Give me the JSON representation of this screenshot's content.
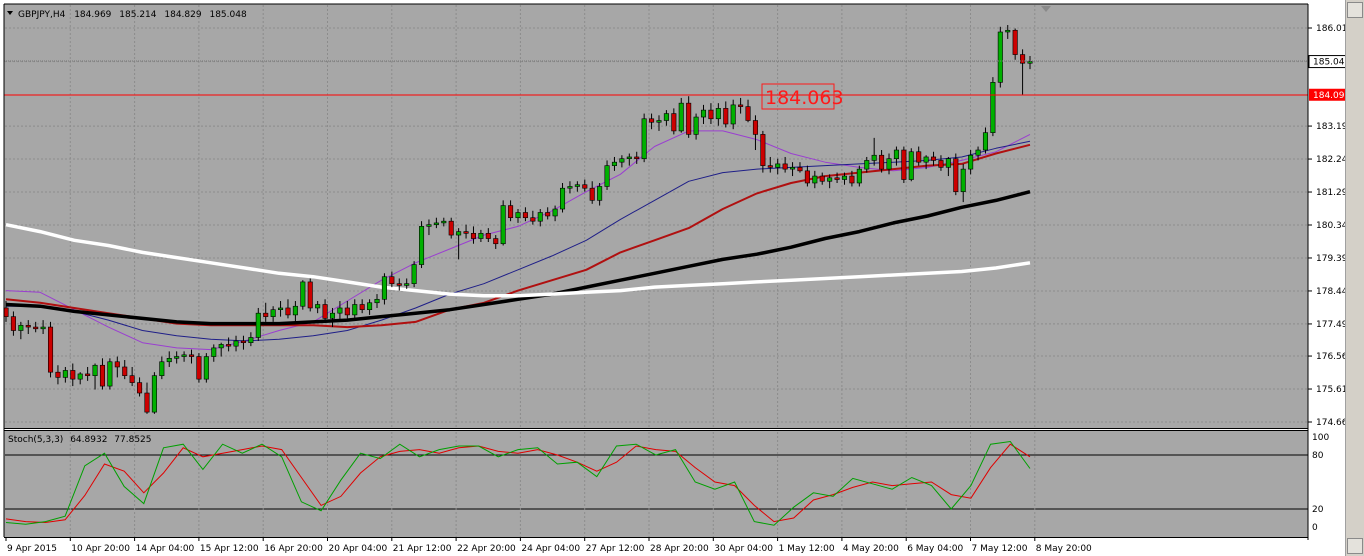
{
  "symbol_header": {
    "symbol": "GBPJPY,H4",
    "open": "184.969",
    "high": "185.214",
    "low": "184.829",
    "close": "185.048"
  },
  "stochastic_header": {
    "name": "Stoch(5,3,3)",
    "main": "64.8932",
    "signal": "77.8525"
  },
  "price_axis": {
    "ticks": [
      "186.015",
      "185.048",
      "183.190",
      "182.240",
      "181.290",
      "180.340",
      "179.390",
      "178.440",
      "177.490",
      "176.565",
      "175.615",
      "174.665"
    ],
    "current_price_tag": "185.048",
    "level_tag": "184.092"
  },
  "stochastic_axis": {
    "ticks": [
      "100",
      "80",
      "20",
      "0"
    ]
  },
  "time_axis": {
    "labels": [
      "9 Apr 2015",
      "10 Apr 20:00",
      "14 Apr 04:00",
      "15 Apr 12:00",
      "16 Apr 20:00",
      "20 Apr 04:00",
      "21 Apr 12:00",
      "22 Apr 20:00",
      "24 Apr 04:00",
      "27 Apr 12:00",
      "28 Apr 20:00",
      "30 Apr 04:00",
      "1 May 12:00",
      "4 May 20:00",
      "6 May 04:00",
      "7 May 12:00",
      "8 May 20:00"
    ]
  },
  "level_annotation": "184.063",
  "colors": {
    "chart_background": "#a7a7a7",
    "bull_candle": "#00b000",
    "bear_candle": "#cc0000",
    "level_line": "#ff0000",
    "ma_fast": "#9a3fd0",
    "ma_mid": "#1f1f88",
    "ma_slow_red": "#b01010",
    "ma_black": "#000000",
    "ma_white": "#ffffff",
    "stoch_main": "#00a000",
    "stoch_signal": "#e00000"
  },
  "chart_data": {
    "type": "candlestick",
    "title": "GBPJPY,H4",
    "ylim": [
      174.5,
      186.3
    ],
    "candles": [
      [
        177.95,
        178.15,
        177.55,
        177.7
      ],
      [
        177.7,
        177.85,
        177.15,
        177.3
      ],
      [
        177.3,
        177.55,
        177.05,
        177.45
      ],
      [
        177.45,
        177.6,
        177.2,
        177.4
      ],
      [
        177.4,
        177.55,
        177.25,
        177.35
      ],
      [
        177.35,
        177.6,
        177.2,
        177.4
      ],
      [
        177.4,
        177.55,
        175.95,
        176.1
      ],
      [
        176.1,
        176.3,
        175.75,
        175.95
      ],
      [
        175.95,
        176.25,
        175.8,
        176.15
      ],
      [
        176.15,
        176.35,
        175.7,
        175.9
      ],
      [
        175.9,
        176.1,
        175.75,
        176.05
      ],
      [
        176.05,
        176.25,
        175.85,
        176.0
      ],
      [
        176.0,
        176.35,
        175.6,
        176.3
      ],
      [
        176.3,
        176.5,
        175.6,
        175.7
      ],
      [
        175.7,
        176.5,
        175.6,
        176.4
      ],
      [
        176.4,
        176.55,
        175.95,
        176.25
      ],
      [
        176.25,
        176.45,
        175.9,
        176.0
      ],
      [
        176.0,
        176.25,
        175.7,
        175.8
      ],
      [
        175.8,
        175.95,
        175.4,
        175.5
      ],
      [
        175.5,
        175.8,
        174.9,
        174.95
      ],
      [
        174.95,
        176.1,
        174.9,
        176.0
      ],
      [
        176.0,
        176.55,
        175.9,
        176.4
      ],
      [
        176.4,
        176.7,
        176.25,
        176.5
      ],
      [
        176.5,
        176.7,
        176.35,
        176.55
      ],
      [
        176.55,
        176.7,
        176.4,
        176.6
      ],
      [
        176.6,
        176.75,
        176.35,
        176.55
      ],
      [
        176.55,
        176.65,
        175.8,
        175.9
      ],
      [
        175.9,
        176.65,
        175.8,
        176.55
      ],
      [
        176.55,
        176.9,
        176.4,
        176.8
      ],
      [
        176.8,
        176.95,
        176.55,
        176.9
      ],
      [
        176.9,
        177.1,
        176.7,
        176.85
      ],
      [
        176.85,
        177.15,
        176.7,
        177.0
      ],
      [
        177.0,
        177.15,
        176.75,
        176.95
      ],
      [
        176.95,
        177.25,
        176.85,
        177.1
      ],
      [
        177.1,
        177.95,
        177.0,
        177.8
      ],
      [
        177.8,
        178.1,
        177.55,
        177.7
      ],
      [
        177.7,
        178.0,
        177.55,
        177.9
      ],
      [
        177.9,
        178.15,
        177.7,
        177.95
      ],
      [
        177.95,
        178.2,
        177.65,
        177.75
      ],
      [
        177.75,
        178.15,
        177.55,
        178.0
      ],
      [
        178.0,
        178.75,
        177.9,
        178.7
      ],
      [
        178.7,
        178.8,
        177.85,
        177.95
      ],
      [
        177.95,
        178.15,
        177.8,
        178.05
      ],
      [
        178.05,
        178.2,
        177.55,
        177.65
      ],
      [
        177.65,
        177.95,
        177.4,
        177.8
      ],
      [
        177.8,
        178.15,
        177.6,
        177.95
      ],
      [
        177.95,
        178.15,
        177.65,
        177.75
      ],
      [
        177.75,
        178.2,
        177.65,
        178.05
      ],
      [
        178.05,
        178.2,
        177.8,
        177.9
      ],
      [
        177.9,
        178.2,
        177.75,
        178.1
      ],
      [
        178.1,
        178.35,
        177.95,
        178.2
      ],
      [
        178.2,
        178.95,
        178.05,
        178.85
      ],
      [
        178.85,
        179.0,
        178.55,
        178.65
      ],
      [
        178.65,
        178.8,
        178.45,
        178.6
      ],
      [
        178.6,
        178.8,
        178.5,
        178.65
      ],
      [
        178.65,
        179.3,
        178.55,
        179.2
      ],
      [
        179.2,
        180.45,
        179.1,
        180.3
      ],
      [
        180.3,
        180.5,
        180.05,
        180.35
      ],
      [
        180.35,
        180.55,
        180.25,
        180.4
      ],
      [
        180.4,
        180.55,
        180.3,
        180.45
      ],
      [
        180.45,
        180.55,
        179.95,
        180.05
      ],
      [
        180.05,
        180.25,
        179.35,
        180.15
      ],
      [
        180.15,
        180.35,
        179.95,
        180.1
      ],
      [
        180.1,
        180.3,
        179.8,
        179.95
      ],
      [
        179.95,
        180.2,
        179.85,
        180.1
      ],
      [
        180.1,
        180.25,
        179.85,
        179.95
      ],
      [
        179.95,
        180.05,
        179.65,
        179.8
      ],
      [
        179.8,
        181.05,
        179.75,
        180.9
      ],
      [
        180.9,
        181.05,
        180.45,
        180.55
      ],
      [
        180.55,
        180.8,
        180.4,
        180.7
      ],
      [
        180.7,
        180.85,
        180.45,
        180.55
      ],
      [
        180.55,
        180.75,
        180.35,
        180.45
      ],
      [
        180.45,
        180.8,
        180.3,
        180.7
      ],
      [
        180.7,
        180.85,
        180.5,
        180.6
      ],
      [
        180.6,
        180.9,
        180.45,
        180.8
      ],
      [
        180.8,
        181.55,
        180.7,
        181.4
      ],
      [
        181.4,
        181.6,
        181.25,
        181.45
      ],
      [
        181.45,
        181.6,
        181.3,
        181.5
      ],
      [
        181.5,
        181.65,
        181.3,
        181.4
      ],
      [
        181.4,
        181.6,
        180.95,
        181.05
      ],
      [
        181.05,
        181.55,
        180.9,
        181.45
      ],
      [
        181.45,
        182.2,
        181.35,
        182.05
      ],
      [
        182.05,
        182.3,
        181.9,
        182.15
      ],
      [
        182.15,
        182.35,
        182.0,
        182.25
      ],
      [
        182.25,
        182.4,
        182.05,
        182.3
      ],
      [
        182.3,
        182.45,
        182.1,
        182.25
      ],
      [
        182.25,
        183.55,
        182.15,
        183.4
      ],
      [
        183.4,
        183.55,
        183.1,
        183.3
      ],
      [
        183.3,
        183.5,
        183.05,
        183.35
      ],
      [
        183.35,
        183.65,
        183.2,
        183.55
      ],
      [
        183.55,
        183.7,
        182.95,
        183.05
      ],
      [
        183.05,
        184.0,
        183.0,
        183.85
      ],
      [
        183.85,
        184.05,
        182.85,
        182.95
      ],
      [
        182.95,
        183.55,
        182.8,
        183.45
      ],
      [
        183.45,
        183.8,
        183.25,
        183.65
      ],
      [
        183.65,
        183.85,
        183.25,
        183.4
      ],
      [
        183.4,
        183.85,
        183.2,
        183.7
      ],
      [
        183.7,
        183.9,
        183.15,
        183.25
      ],
      [
        183.25,
        183.95,
        183.1,
        183.8
      ],
      [
        183.8,
        184.0,
        183.55,
        183.75
      ],
      [
        183.75,
        183.95,
        183.3,
        183.35
      ],
      [
        183.35,
        183.5,
        182.5,
        182.95
      ],
      [
        182.95,
        183.05,
        181.85,
        182.05
      ],
      [
        182.05,
        182.3,
        181.85,
        182.0
      ],
      [
        182.0,
        182.25,
        181.8,
        182.1
      ],
      [
        182.1,
        182.3,
        181.85,
        181.95
      ],
      [
        181.95,
        182.15,
        181.75,
        182.0
      ],
      [
        182.0,
        182.15,
        181.85,
        181.9
      ],
      [
        181.9,
        182.05,
        181.45,
        181.55
      ],
      [
        181.55,
        181.9,
        181.4,
        181.75
      ],
      [
        181.75,
        181.85,
        181.5,
        181.6
      ],
      [
        181.6,
        181.8,
        181.4,
        181.7
      ],
      [
        181.7,
        181.85,
        181.55,
        181.65
      ],
      [
        181.65,
        181.85,
        181.5,
        181.75
      ],
      [
        181.75,
        181.9,
        181.45,
        181.55
      ],
      [
        181.55,
        182.05,
        181.45,
        181.95
      ],
      [
        181.95,
        182.3,
        181.85,
        182.2
      ],
      [
        182.2,
        182.85,
        182.05,
        182.35
      ],
      [
        182.35,
        182.5,
        181.85,
        181.95
      ],
      [
        181.95,
        182.4,
        181.8,
        182.25
      ],
      [
        182.25,
        182.6,
        182.05,
        182.5
      ],
      [
        182.5,
        182.6,
        181.55,
        181.65
      ],
      [
        181.65,
        182.55,
        181.6,
        182.45
      ],
      [
        182.45,
        182.6,
        182.05,
        182.15
      ],
      [
        182.15,
        182.35,
        181.95,
        182.3
      ],
      [
        182.3,
        182.45,
        182.05,
        182.2
      ],
      [
        182.2,
        182.35,
        181.9,
        182.0
      ],
      [
        182.0,
        182.3,
        181.75,
        182.25
      ],
      [
        182.25,
        182.4,
        181.2,
        181.3
      ],
      [
        181.3,
        182.1,
        181.0,
        181.95
      ],
      [
        181.95,
        182.5,
        181.8,
        182.35
      ],
      [
        182.35,
        182.6,
        182.2,
        182.5
      ],
      [
        182.5,
        183.15,
        182.4,
        183.0
      ],
      [
        183.0,
        184.6,
        182.9,
        184.45
      ],
      [
        184.45,
        186.05,
        184.3,
        185.9
      ],
      [
        185.9,
        186.1,
        185.7,
        185.95
      ],
      [
        185.95,
        186.0,
        185.1,
        185.25
      ],
      [
        185.25,
        185.4,
        184.1,
        185.0
      ],
      [
        185.0,
        185.21,
        184.83,
        185.05
      ]
    ],
    "moving_averages": [
      {
        "color": "#9a3fd0",
        "points": [
          178.45,
          178.4,
          177.9,
          177.4,
          176.95,
          176.8,
          176.75,
          177.0,
          177.3,
          177.55,
          178.15,
          178.75,
          179.25,
          179.65,
          180.05,
          180.3,
          180.75,
          181.3,
          181.8,
          182.6,
          183.05,
          183.05,
          182.8,
          182.4,
          182.15,
          182.0,
          181.9,
          182.0,
          182.2,
          182.45,
          182.95
        ]
      },
      {
        "color": "#1f1f88",
        "points": [
          178.0,
          178.0,
          177.85,
          177.6,
          177.3,
          177.15,
          177.05,
          177.0,
          177.05,
          177.15,
          177.3,
          177.6,
          177.95,
          178.35,
          178.65,
          179.05,
          179.45,
          179.9,
          180.5,
          181.05,
          181.6,
          181.85,
          181.95,
          182.0,
          182.05,
          182.1,
          182.15,
          182.2,
          182.3,
          182.55,
          182.75
        ]
      },
      {
        "color": "#b01010",
        "points": [
          178.2,
          178.1,
          177.95,
          177.8,
          177.65,
          177.5,
          177.45,
          177.45,
          177.45,
          177.45,
          177.4,
          177.45,
          177.55,
          177.9,
          178.1,
          178.45,
          178.75,
          179.05,
          179.55,
          179.9,
          180.25,
          180.8,
          181.25,
          181.55,
          181.75,
          181.85,
          181.95,
          182.05,
          182.1,
          182.4,
          182.65
        ]
      },
      {
        "color": "#000000",
        "points": [
          178.05,
          178.0,
          177.85,
          177.75,
          177.65,
          177.55,
          177.5,
          177.5,
          177.5,
          177.55,
          177.6,
          177.7,
          177.8,
          177.9,
          178.05,
          178.2,
          178.35,
          178.55,
          178.75,
          178.95,
          179.15,
          179.35,
          179.5,
          179.7,
          179.95,
          180.15,
          180.4,
          180.6,
          180.85,
          181.05,
          181.3
        ]
      },
      {
        "color": "#ffffff",
        "points": [
          180.35,
          180.15,
          179.9,
          179.75,
          179.55,
          179.4,
          179.25,
          179.1,
          178.95,
          178.85,
          178.7,
          178.55,
          178.45,
          178.35,
          178.3,
          178.3,
          178.35,
          178.4,
          178.45,
          178.55,
          178.6,
          178.65,
          178.7,
          178.75,
          178.8,
          178.85,
          178.9,
          178.95,
          179.0,
          179.1,
          179.25
        ]
      }
    ],
    "stochastic": {
      "ylim": [
        0,
        100
      ],
      "levels": [
        80,
        20
      ],
      "main": [
        5,
        3,
        6,
        12,
        68,
        82,
        45,
        26,
        88,
        92,
        64,
        92,
        82,
        92,
        78,
        28,
        18,
        52,
        82,
        76,
        92,
        78,
        86,
        90,
        90,
        78,
        86,
        88,
        70,
        72,
        56,
        90,
        92,
        80,
        86,
        50,
        42,
        50,
        6,
        2,
        22,
        38,
        34,
        54,
        48,
        42,
        55,
        46,
        20,
        46,
        92,
        95,
        65
      ],
      "signal": [
        9,
        6,
        5,
        8,
        35,
        70,
        62,
        38,
        60,
        88,
        78,
        82,
        86,
        90,
        86,
        55,
        24,
        34,
        60,
        78,
        84,
        86,
        82,
        88,
        90,
        84,
        82,
        86,
        80,
        72,
        62,
        72,
        90,
        86,
        84,
        66,
        50,
        46,
        24,
        6,
        10,
        30,
        36,
        44,
        50,
        46,
        48,
        50,
        36,
        32,
        66,
        92,
        78
      ]
    }
  }
}
